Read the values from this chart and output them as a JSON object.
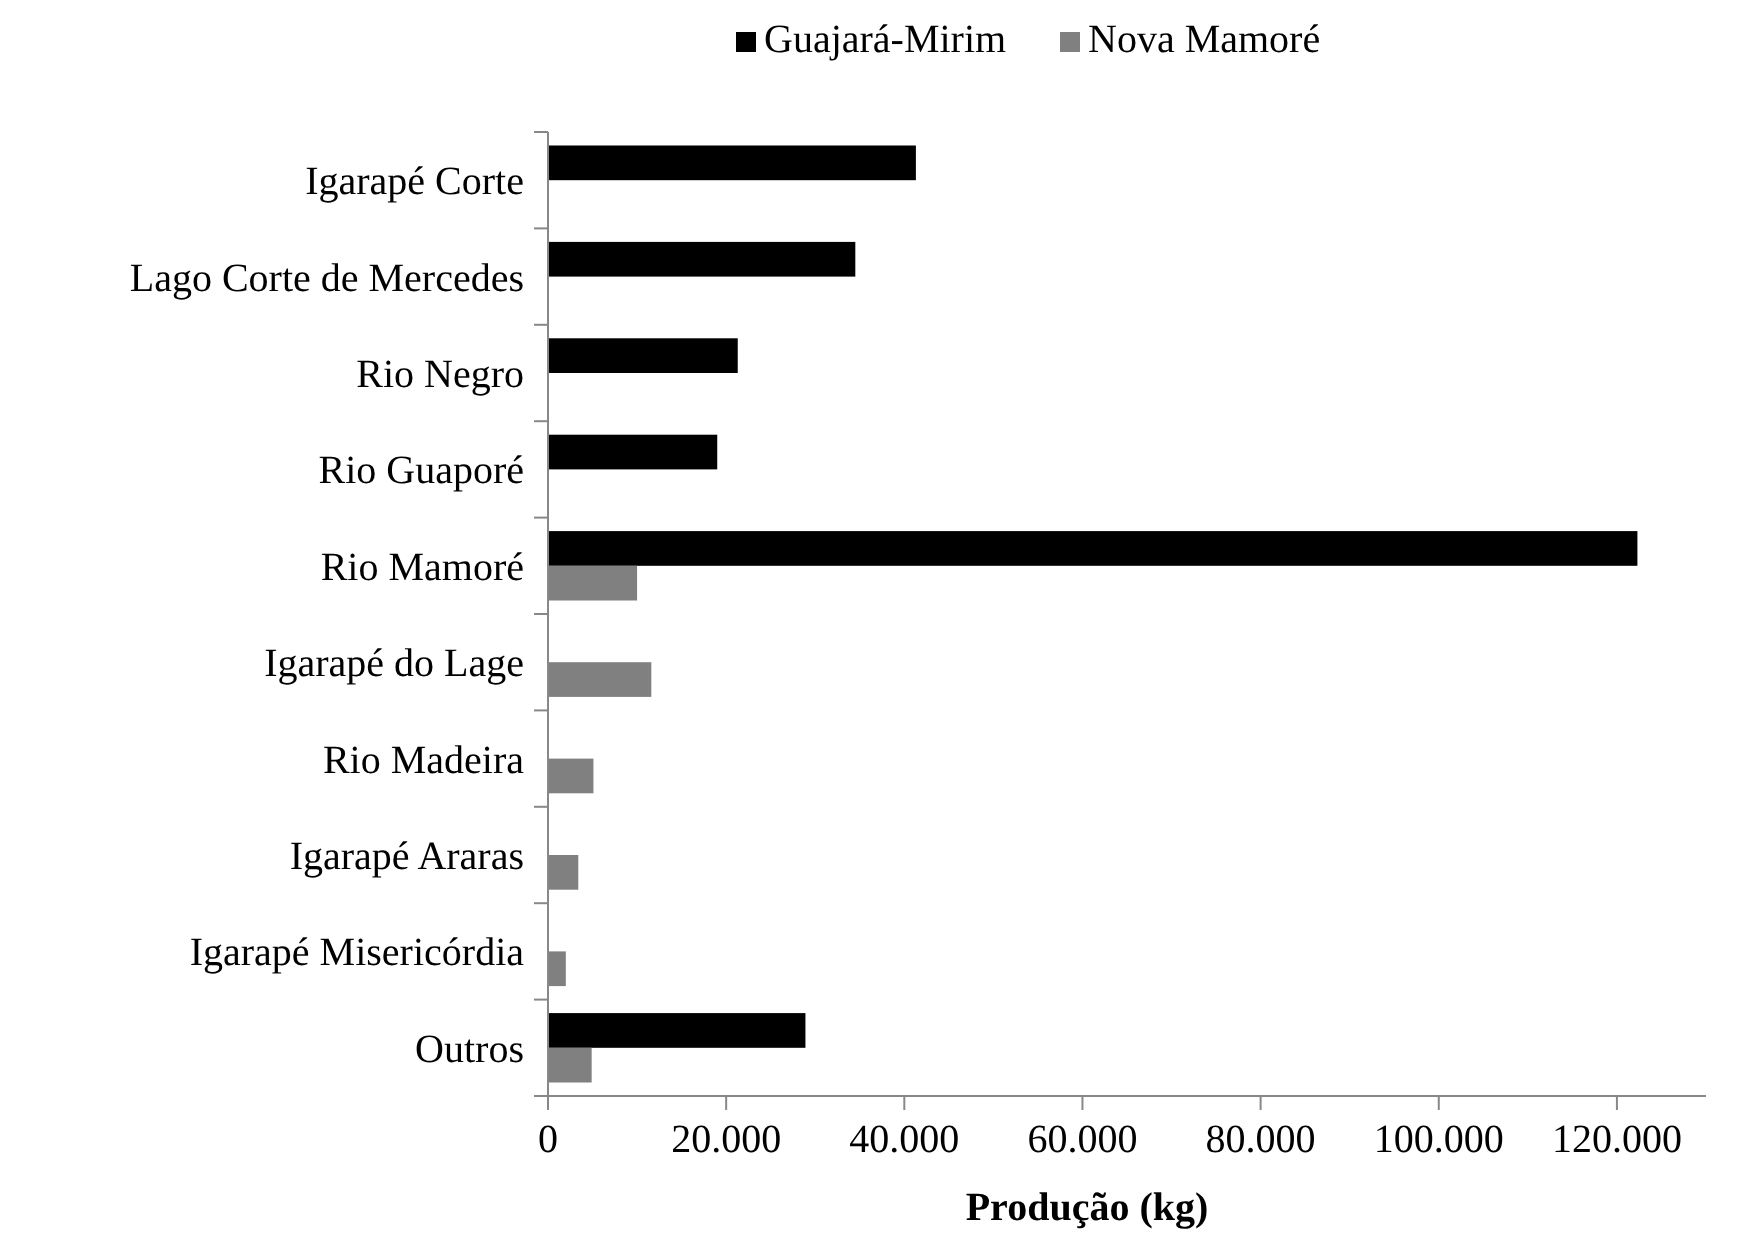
{
  "chart_data": {
    "type": "bar",
    "orientation": "horizontal",
    "xlabel": "Produção (kg)",
    "categories": [
      "Igarapé Corte",
      "Lago Corte de Mercedes",
      "Rio Negro",
      "Rio Guaporé",
      "Rio Mamoré",
      "Igarapé do Lage",
      "Rio Madeira",
      "Igarapé Araras",
      "Igarapé Misericórdia",
      "Outros"
    ],
    "series": [
      {
        "name": "Guajará-Mirim",
        "color": "#000000",
        "values": [
          41300,
          34500,
          21300,
          19000,
          122300,
          null,
          null,
          null,
          null,
          28900
        ]
      },
      {
        "name": "Nova Mamoré",
        "color": "#808080",
        "values": [
          null,
          null,
          null,
          null,
          10000,
          11600,
          5100,
          3400,
          2000,
          4900
        ]
      }
    ],
    "xlim": [
      0,
      130000
    ],
    "xticks": [
      0,
      {
        "value": 20000,
        "label": "20.000"
      },
      {
        "value": 40000,
        "label": "40.000"
      },
      {
        "value": 60000,
        "label": "60.000"
      },
      {
        "value": 80000,
        "label": "80.000"
      },
      {
        "value": 100000,
        "label": "100.000"
      },
      {
        "value": 120000,
        "label": "120.000"
      }
    ],
    "legend": "top",
    "grid": false
  }
}
